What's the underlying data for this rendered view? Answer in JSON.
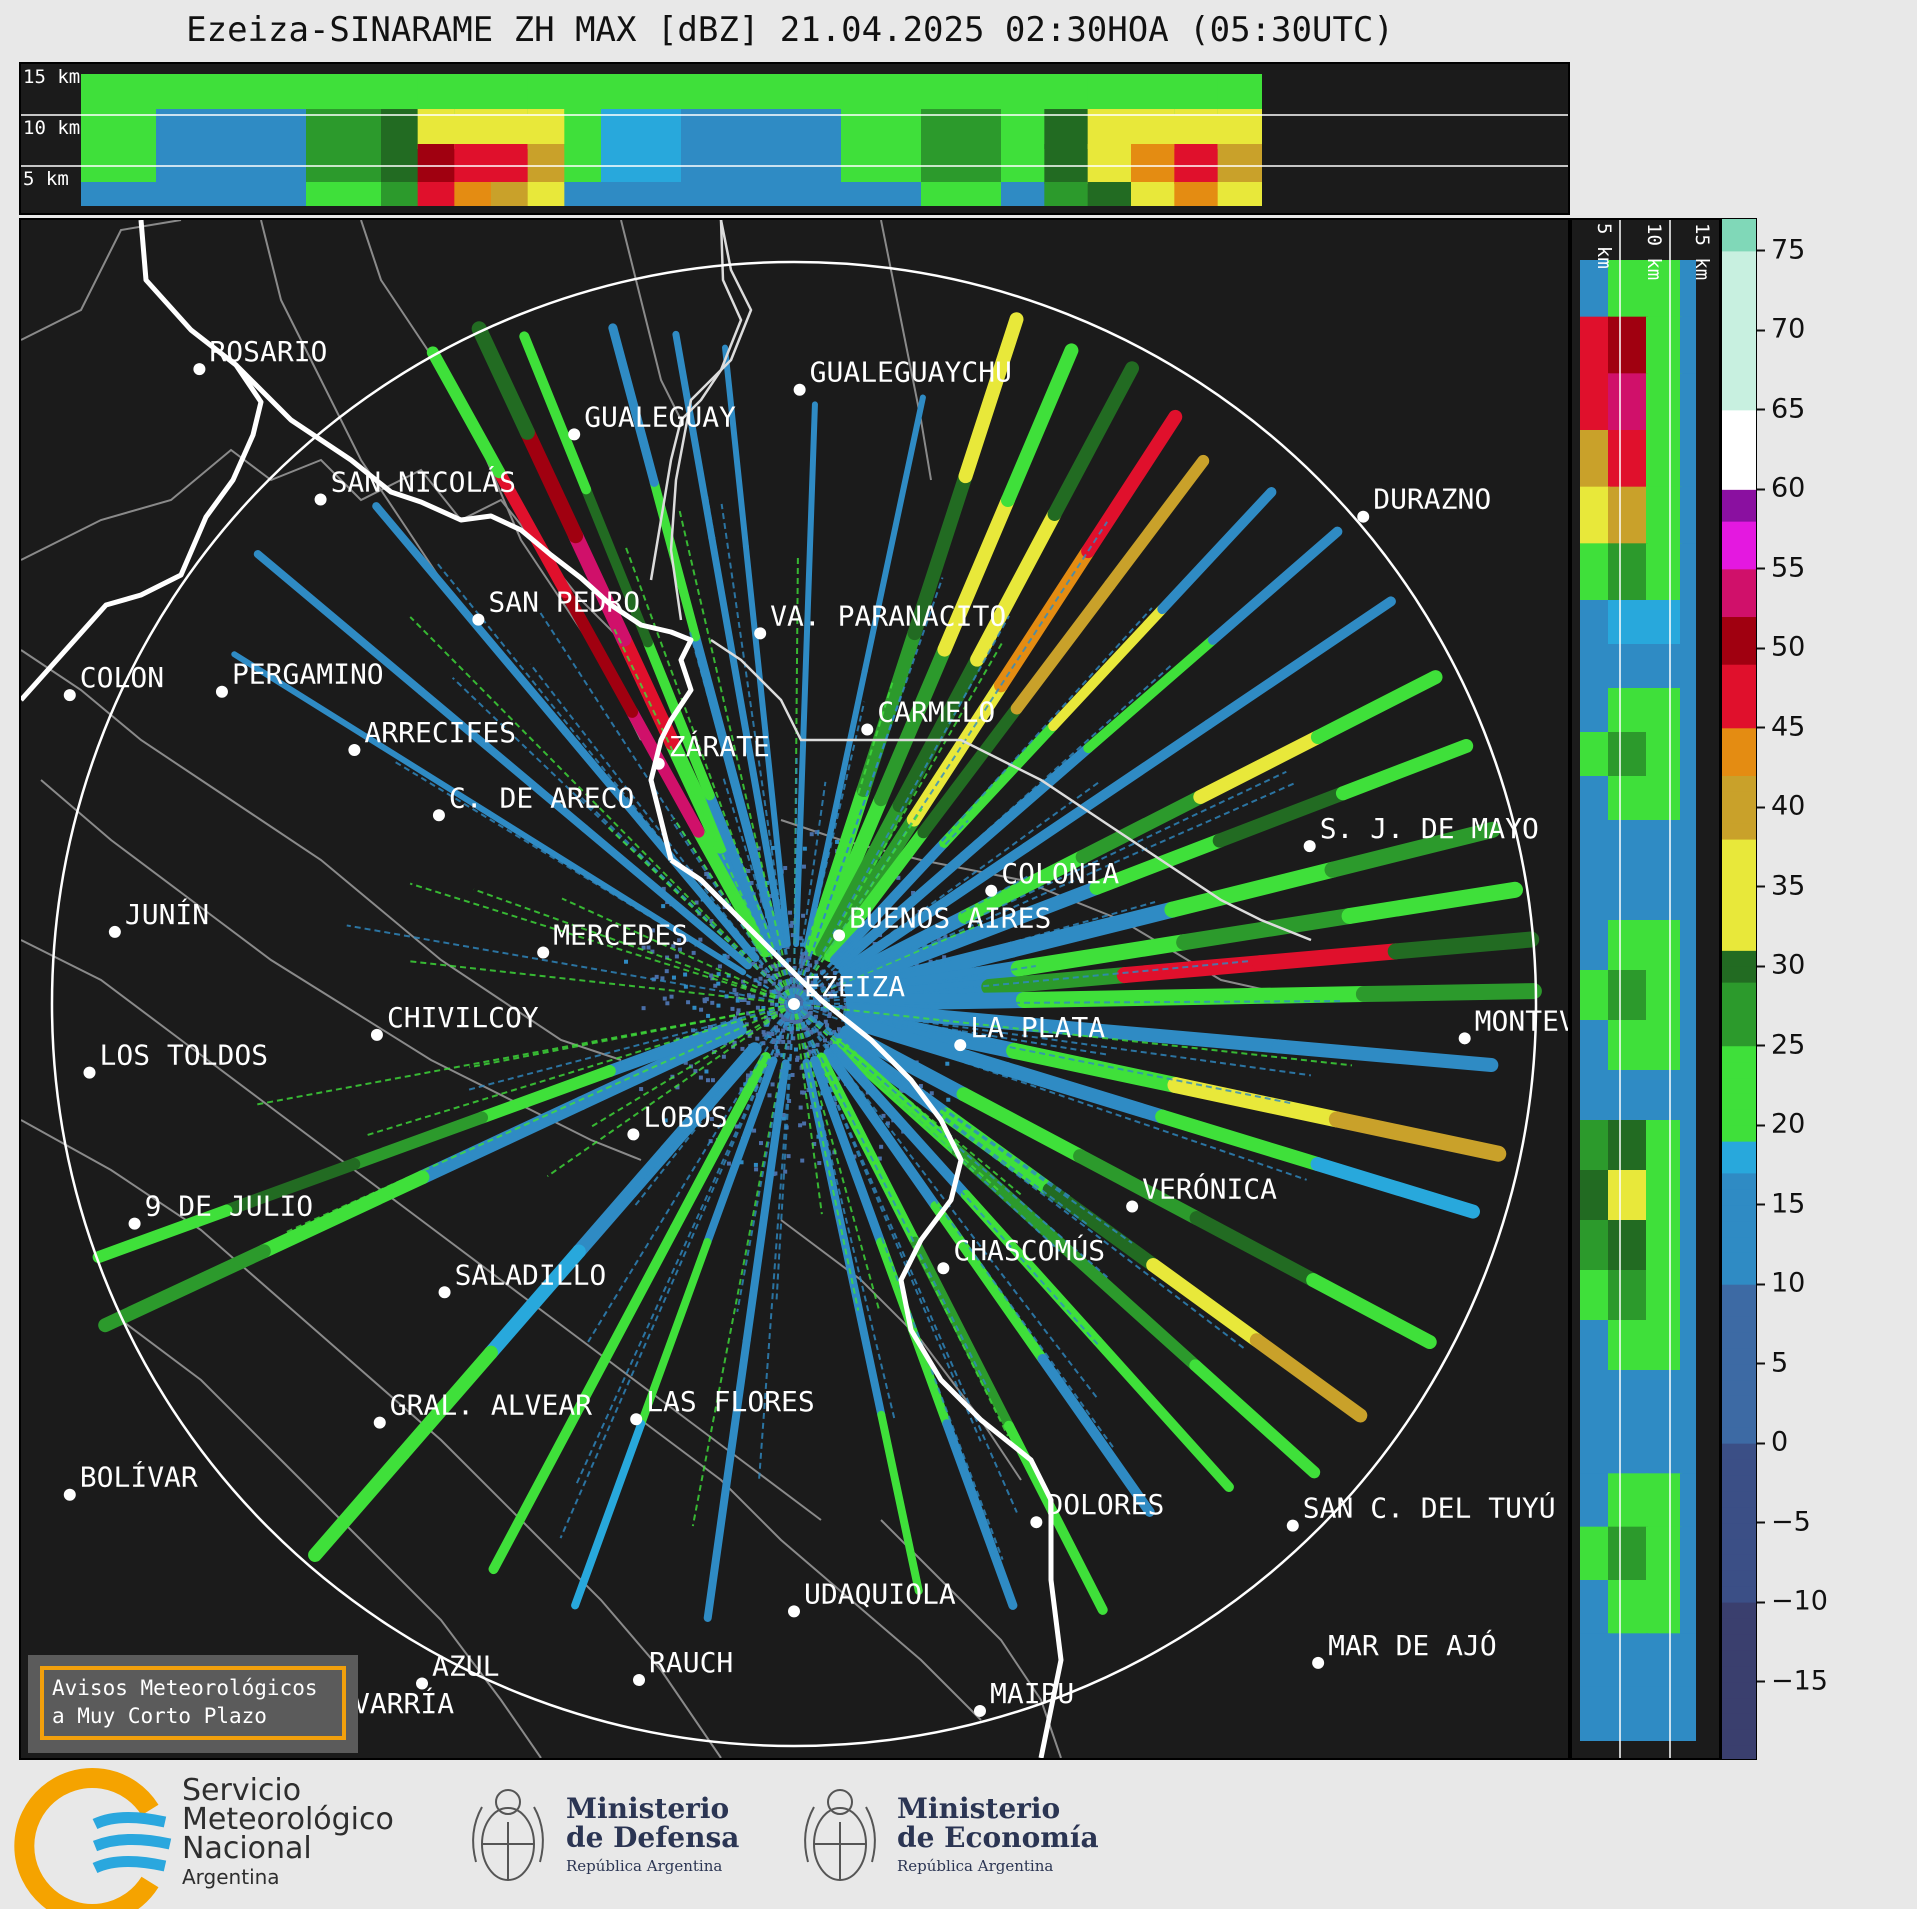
{
  "title": "Ezeiza-SINARAME ZH MAX [dBZ] 21.04.2025 02:30HOA (05:30UTC)",
  "top_profile": {
    "heights": [
      "15 km",
      "10 km",
      "5 km"
    ]
  },
  "right_profile": {
    "heights": [
      "5 km",
      "10 km",
      "15 km"
    ]
  },
  "colorbar": {
    "unit": "dBZ",
    "ticks": [
      "75",
      "70",
      "65",
      "60",
      "55",
      "50",
      "45",
      "40",
      "35",
      "30",
      "25",
      "20",
      "15",
      "10",
      "5",
      "0",
      "−5",
      "−10",
      "−15"
    ],
    "range": [
      -20,
      77
    ]
  },
  "places": [
    {
      "name": "ROSARIO",
      "lon": -60.65,
      "lat": -32.95
    },
    {
      "name": "GUALEGUAYCHU",
      "lon": -58.52,
      "lat": -33.01
    },
    {
      "name": "GUALEGUAY",
      "lon": -59.32,
      "lat": -33.14
    },
    {
      "name": "SAN NICOLÁS",
      "lon": -60.22,
      "lat": -33.33
    },
    {
      "name": "DURAZNO",
      "lon": -56.52,
      "lat": -33.38
    },
    {
      "name": "SAN PEDRO",
      "lon": -59.66,
      "lat": -33.68
    },
    {
      "name": "VA. PARANACITO",
      "lon": -58.66,
      "lat": -33.72
    },
    {
      "name": "COLON",
      "lon": -61.11,
      "lat": -33.9
    },
    {
      "name": "PERGAMINO",
      "lon": -60.57,
      "lat": -33.89
    },
    {
      "name": "CARMELO",
      "lon": -58.28,
      "lat": -34.0
    },
    {
      "name": "ARRECIFES",
      "lon": -60.1,
      "lat": -34.06
    },
    {
      "name": "ZÁRATE",
      "lon": -59.02,
      "lat": -34.1
    },
    {
      "name": "C. DE ARECO",
      "lon": -59.8,
      "lat": -34.25
    },
    {
      "name": "S. J. DE MAYO",
      "lon": -56.71,
      "lat": -34.34
    },
    {
      "name": "COLONIA",
      "lon": -57.84,
      "lat": -34.47
    },
    {
      "name": "JUNÍN",
      "lon": -60.95,
      "lat": -34.59
    },
    {
      "name": "BUENOS AIRES",
      "lon": -58.38,
      "lat": -34.6
    },
    {
      "name": "MERCEDES",
      "lon": -59.43,
      "lat": -34.65
    },
    {
      "name": "EZEIZA",
      "lon": -58.54,
      "lat": -34.8
    },
    {
      "name": "MONTEVIDEO",
      "lon": -56.16,
      "lat": -34.9
    },
    {
      "name": "CHIVILCOY",
      "lon": -60.02,
      "lat": -34.89
    },
    {
      "name": "LA PLATA",
      "lon": -57.95,
      "lat": -34.92
    },
    {
      "name": "LOS TOLDOS",
      "lon": -61.04,
      "lat": -35.0
    },
    {
      "name": "LOBOS",
      "lon": -59.11,
      "lat": -35.18
    },
    {
      "name": "VERÓNICA",
      "lon": -57.34,
      "lat": -35.39
    },
    {
      "name": "9 DE JULIO",
      "lon": -60.88,
      "lat": -35.44
    },
    {
      "name": "CHASCOMÚS",
      "lon": -58.01,
      "lat": -35.57
    },
    {
      "name": "SALADILLO",
      "lon": -59.78,
      "lat": -35.64
    },
    {
      "name": "GRAL. ALVEAR",
      "lon": -60.01,
      "lat": -36.02
    },
    {
      "name": "LAS FLORES",
      "lon": -59.1,
      "lat": -36.01
    },
    {
      "name": "BOLÍVAR",
      "lon": -61.11,
      "lat": -36.23
    },
    {
      "name": "DOLORES",
      "lon": -57.68,
      "lat": -36.31
    },
    {
      "name": "SAN C. DEL TUYÚ",
      "lon": -56.77,
      "lat": -36.32
    },
    {
      "name": "UDAQUIOLA",
      "lon": -58.54,
      "lat": -36.57
    },
    {
      "name": "MAR DE AJÓ",
      "lon": -56.68,
      "lat": -36.72
    },
    {
      "name": "AZUL",
      "lon": -59.86,
      "lat": -36.78
    },
    {
      "name": "RAUCH",
      "lon": -59.09,
      "lat": -36.77
    },
    {
      "name": "OLAVARRÍA",
      "lon": -60.32,
      "lat": -36.89
    },
    {
      "name": "MAIPU",
      "lon": -57.88,
      "lat": -36.86
    }
  ],
  "radar_site": "EZEIZA",
  "range_ring_km": 240,
  "avisos": {
    "line1": "Avisos Meteorológicos",
    "line2": "a Muy Corto Plazo"
  },
  "footer": {
    "smn": {
      "line1": "Servicio",
      "line2": "Meteorológico",
      "line3": "Nacional",
      "line4": "Argentina"
    },
    "defensa": {
      "line1": "Ministerio",
      "line2": "de Defensa",
      "line3": "República Argentina"
    },
    "economia": {
      "line1": "Ministerio",
      "line2": "de Economía",
      "line3": "República Argentina"
    }
  },
  "colors": {
    "background": "#1b1b1b",
    "coast": "#ffffff",
    "borders": "#8a8a8a",
    "smn_blue": "#2aa7de",
    "smn_orange": "#f5a300"
  }
}
